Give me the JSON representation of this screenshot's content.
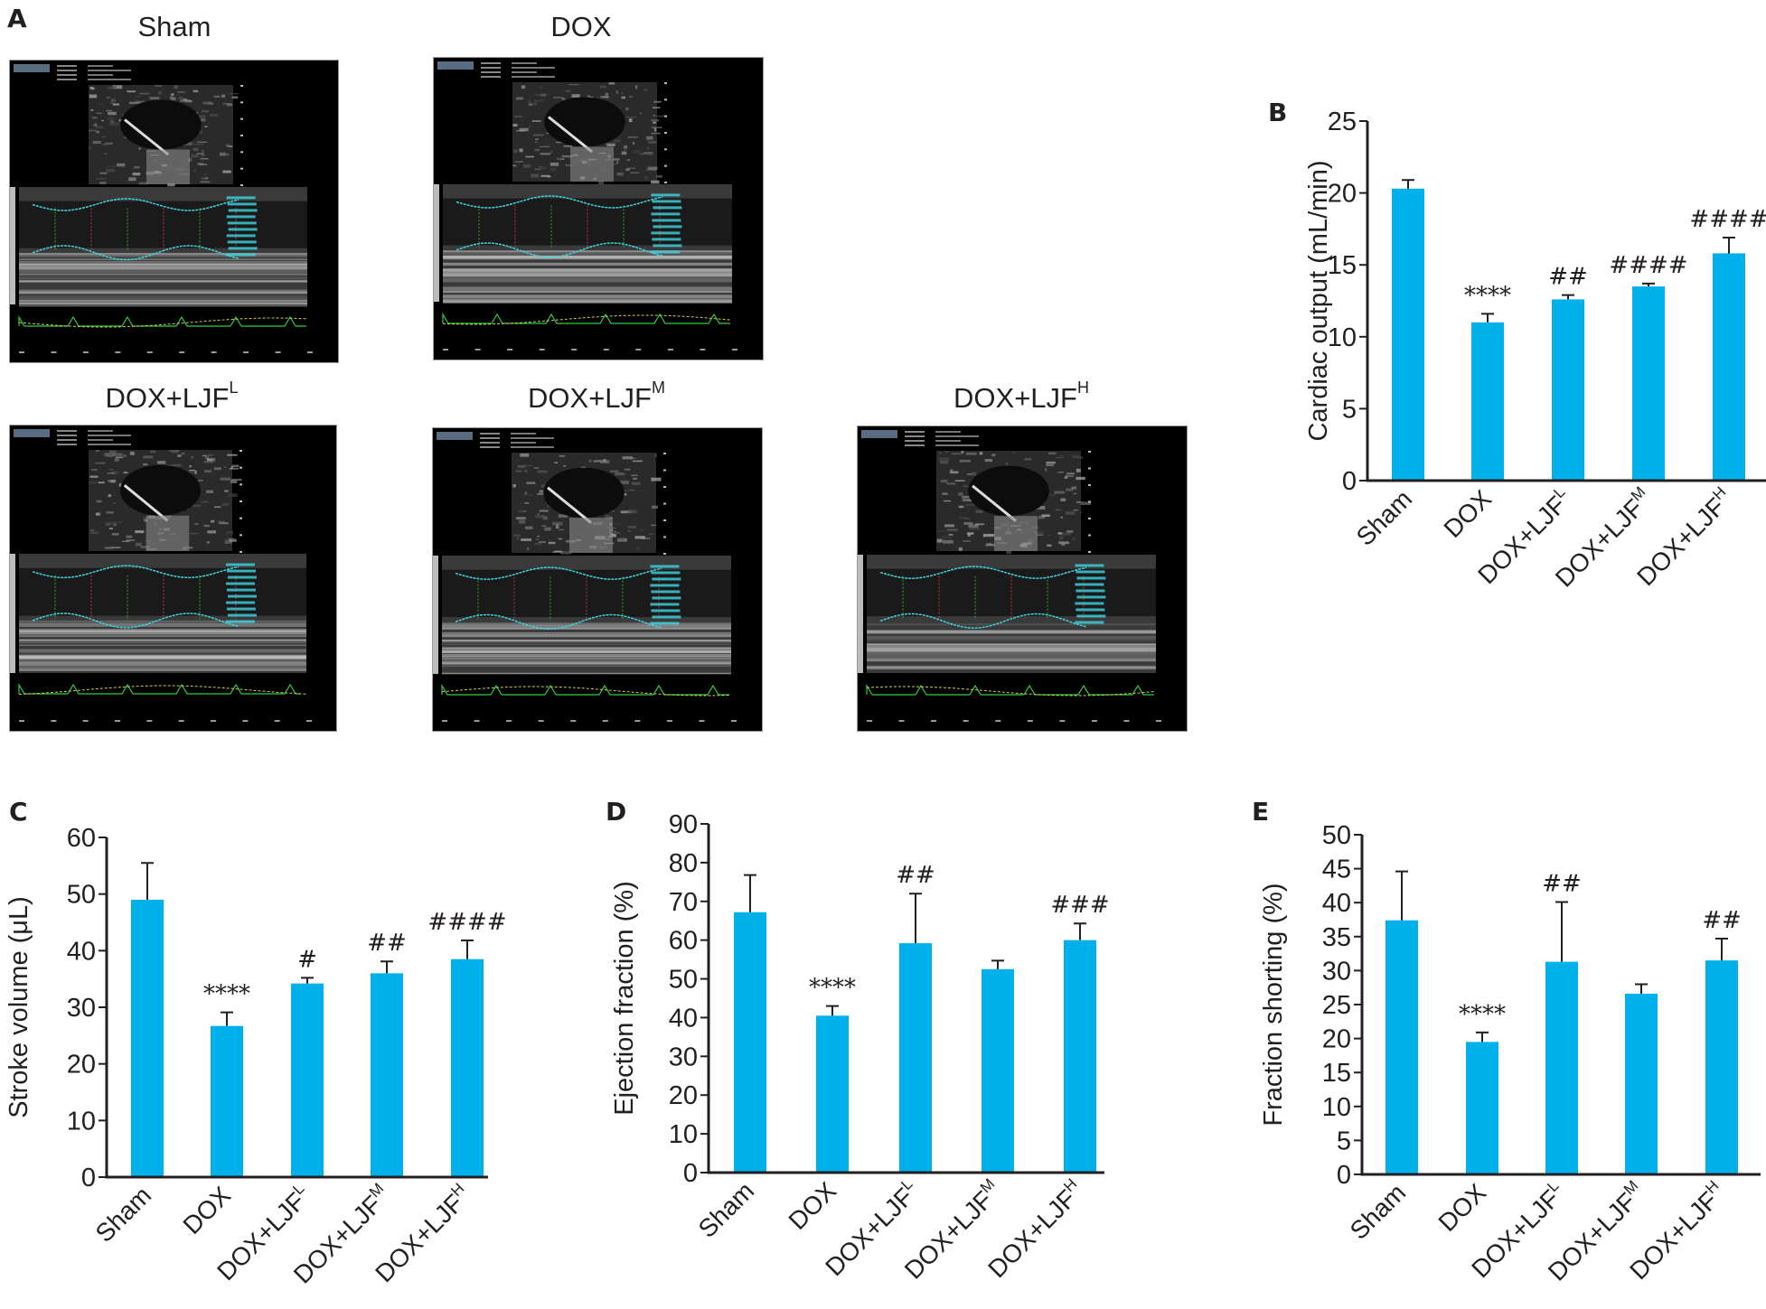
{
  "panel_a": {
    "letter": "A",
    "images": [
      {
        "title": "Sham",
        "sup": ""
      },
      {
        "title": "DOX",
        "sup": ""
      },
      {
        "title": "DOX+LJF",
        "sup": "L"
      },
      {
        "title": "DOX+LJF",
        "sup": "M"
      },
      {
        "title": "DOX+LJF",
        "sup": "H"
      }
    ]
  },
  "colors": {
    "bar": "#00b0eb",
    "axis": "#231f20",
    "echo_trace": "#3fd4e0",
    "ecg": "#2ecc40",
    "resp": "#d8c860"
  },
  "chart_data": [
    {
      "panel": "B",
      "type": "bar",
      "title": "",
      "xlabel": "",
      "ylabel": "Cardiac output (mL/min)",
      "ylim": [
        0,
        25
      ],
      "yticks": [
        0,
        5,
        10,
        15,
        20,
        25
      ],
      "categories": [
        {
          "base": "Sham",
          "sup": ""
        },
        {
          "base": "DOX",
          "sup": ""
        },
        {
          "base": "DOX+LJF",
          "sup": "L"
        },
        {
          "base": "DOX+LJF",
          "sup": "M"
        },
        {
          "base": "DOX+LJF",
          "sup": "H"
        }
      ],
      "values": [
        20.3,
        11.0,
        12.6,
        13.5,
        15.8
      ],
      "error_upper": [
        20.9,
        11.6,
        12.9,
        13.7,
        16.9
      ],
      "annotations": [
        "",
        "****",
        "##",
        "####",
        "####"
      ]
    },
    {
      "panel": "C",
      "type": "bar",
      "title": "",
      "xlabel": "",
      "ylabel": "Stroke volume (μL)",
      "ylim": [
        0,
        60
      ],
      "yticks": [
        0,
        10,
        20,
        30,
        40,
        50,
        60
      ],
      "categories": [
        {
          "base": "Sham",
          "sup": ""
        },
        {
          "base": "DOX",
          "sup": ""
        },
        {
          "base": "DOX+LJF",
          "sup": "L"
        },
        {
          "base": "DOX+LJF",
          "sup": "M"
        },
        {
          "base": "DOX+LJF",
          "sup": "H"
        }
      ],
      "values": [
        49.0,
        26.7,
        34.2,
        36.0,
        38.5
      ],
      "error_upper": [
        55.5,
        29.1,
        35.2,
        38.1,
        41.8
      ],
      "annotations": [
        "",
        "****",
        "#",
        "##",
        "####"
      ]
    },
    {
      "panel": "D",
      "type": "bar",
      "title": "",
      "xlabel": "",
      "ylabel": "Ejection fraction (%)",
      "ylim": [
        0,
        90
      ],
      "yticks": [
        0,
        10,
        20,
        30,
        40,
        50,
        60,
        70,
        80,
        90
      ],
      "categories": [
        {
          "base": "Sham",
          "sup": ""
        },
        {
          "base": "DOX",
          "sup": ""
        },
        {
          "base": "DOX+LJF",
          "sup": "L"
        },
        {
          "base": "DOX+LJF",
          "sup": "M"
        },
        {
          "base": "DOX+LJF",
          "sup": "H"
        }
      ],
      "values": [
        67.2,
        40.5,
        59.2,
        52.5,
        60.0
      ],
      "error_upper": [
        76.8,
        43.0,
        72.0,
        54.7,
        64.3
      ],
      "annotations": [
        "",
        "****",
        "##",
        "",
        "###"
      ]
    },
    {
      "panel": "E",
      "type": "bar",
      "title": "",
      "xlabel": "",
      "ylabel": "Fraction shorting (%)",
      "ylim": [
        0,
        50
      ],
      "yticks": [
        0,
        5,
        10,
        15,
        20,
        25,
        30,
        35,
        40,
        45,
        50
      ],
      "categories": [
        {
          "base": "Sham",
          "sup": ""
        },
        {
          "base": "DOX",
          "sup": ""
        },
        {
          "base": "DOX+LJF",
          "sup": "L"
        },
        {
          "base": "DOX+LJF",
          "sup": "M"
        },
        {
          "base": "DOX+LJF",
          "sup": "H"
        }
      ],
      "values": [
        37.4,
        19.5,
        31.3,
        26.6,
        31.5
      ],
      "error_upper": [
        44.6,
        20.9,
        40.1,
        28.0,
        34.7
      ],
      "annotations": [
        "",
        "****",
        "##",
        "",
        "##"
      ]
    }
  ]
}
